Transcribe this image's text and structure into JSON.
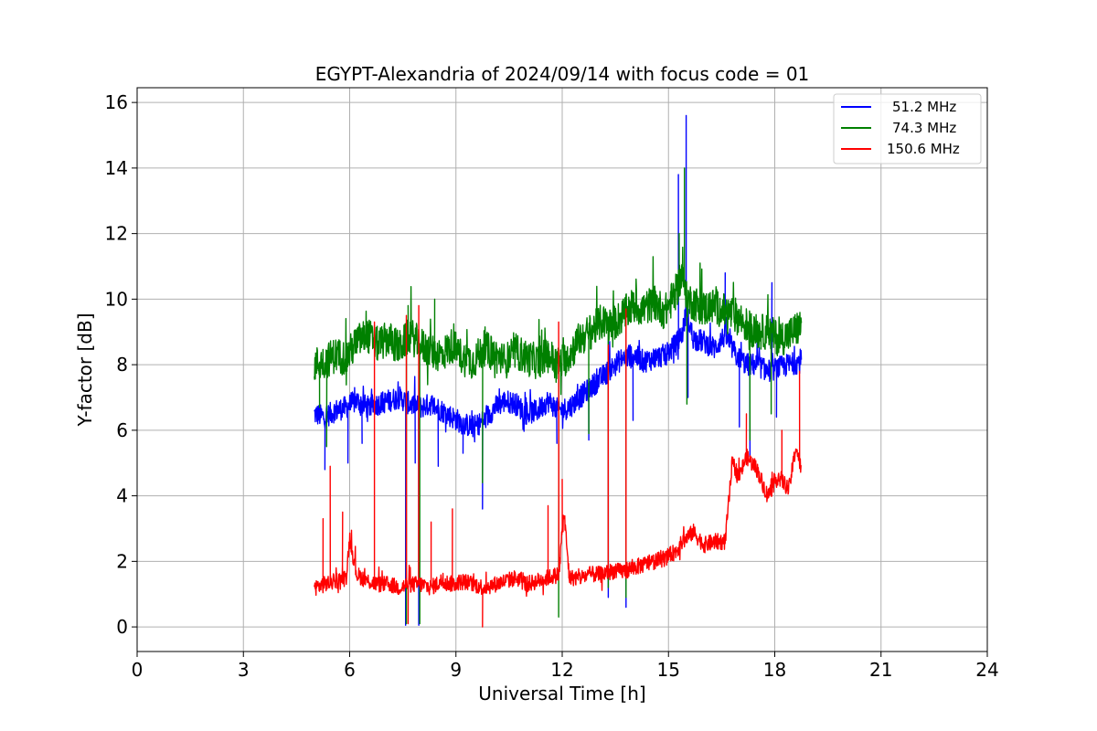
{
  "chart_data": {
    "type": "line",
    "title": "EGYPT-Alexandria of 2024/09/14 with focus code = 01",
    "xlabel": "Universal Time [h]",
    "ylabel": "Y-factor [dB]",
    "xlim": [
      0,
      24
    ],
    "ylim": [
      -0.75,
      16.45
    ],
    "xticks": [
      0,
      3,
      6,
      9,
      12,
      15,
      18,
      21,
      24
    ],
    "yticks": [
      0,
      2,
      4,
      6,
      8,
      10,
      12,
      14,
      16
    ],
    "grid": true,
    "legend_position": "top-right",
    "series": [
      {
        "name": "51.2 MHz",
        "color": "#0000ff",
        "x": [
          5.0,
          5.3,
          5.6,
          5.9,
          6.2,
          6.5,
          6.8,
          7.1,
          7.4,
          7.7,
          8.0,
          8.3,
          8.6,
          8.9,
          9.2,
          9.5,
          9.8,
          10.1,
          10.4,
          10.7,
          11.0,
          11.3,
          11.6,
          11.9,
          12.2,
          12.5,
          12.8,
          13.1,
          13.4,
          13.7,
          14.0,
          14.3,
          14.6,
          14.9,
          15.2,
          15.4,
          15.5,
          15.7,
          16.0,
          16.3,
          16.6,
          16.9,
          17.2,
          17.5,
          17.8,
          18.1,
          18.4,
          18.75
        ],
        "y": [
          6.5,
          6.4,
          6.6,
          6.7,
          6.9,
          6.7,
          6.8,
          6.9,
          7.0,
          6.8,
          6.7,
          6.8,
          6.6,
          6.4,
          6.2,
          6.1,
          6.3,
          6.7,
          6.9,
          6.8,
          6.5,
          6.6,
          6.9,
          6.6,
          6.7,
          7.0,
          7.3,
          7.6,
          7.9,
          8.2,
          8.3,
          8.1,
          8.2,
          8.3,
          8.6,
          9.0,
          9.6,
          8.8,
          8.7,
          8.5,
          8.9,
          8.3,
          8.0,
          8.0,
          7.8,
          7.9,
          8.0,
          8.1
        ],
        "spikes": [
          [
            5.3,
            4.8
          ],
          [
            5.95,
            5.0
          ],
          [
            6.35,
            5.6
          ],
          [
            7.58,
            0.05
          ],
          [
            7.85,
            5.0
          ],
          [
            7.95,
            0.05
          ],
          [
            8.5,
            4.9
          ],
          [
            9.2,
            5.3
          ],
          [
            9.75,
            3.6
          ],
          [
            11.85,
            5.6
          ],
          [
            12.75,
            5.7
          ],
          [
            13.3,
            0.9
          ],
          [
            13.8,
            0.6
          ],
          [
            14.0,
            6.3
          ],
          [
            15.28,
            13.8
          ],
          [
            15.5,
            15.6
          ],
          [
            15.55,
            7.0
          ],
          [
            16.6,
            10.8
          ],
          [
            17.0,
            6.1
          ],
          [
            17.3,
            5.2
          ],
          [
            17.92,
            10.5
          ],
          [
            18.05,
            6.4
          ]
        ]
      },
      {
        "name": "74.3 MHz",
        "color": "#008000",
        "x": [
          5.0,
          5.3,
          5.6,
          5.9,
          6.2,
          6.5,
          6.8,
          7.1,
          7.4,
          7.7,
          8.0,
          8.3,
          8.6,
          8.9,
          9.2,
          9.5,
          9.8,
          10.1,
          10.4,
          10.7,
          11.0,
          11.3,
          11.6,
          11.9,
          12.2,
          12.5,
          12.8,
          13.1,
          13.4,
          13.7,
          14.0,
          14.3,
          14.6,
          14.9,
          15.2,
          15.4,
          15.5,
          15.7,
          16.0,
          16.3,
          16.6,
          16.9,
          17.2,
          17.5,
          17.8,
          18.1,
          18.4,
          18.75
        ],
        "y": [
          8.0,
          8.1,
          8.3,
          8.2,
          8.7,
          8.9,
          8.6,
          8.8,
          8.5,
          8.9,
          8.6,
          8.4,
          8.3,
          8.6,
          8.2,
          8.1,
          8.5,
          8.3,
          8.1,
          8.4,
          8.2,
          8.1,
          8.3,
          8.0,
          8.3,
          8.8,
          9.0,
          9.3,
          9.2,
          9.5,
          9.8,
          9.7,
          9.9,
          9.6,
          10.2,
          10.8,
          10.0,
          9.9,
          9.7,
          9.8,
          9.6,
          9.5,
          9.2,
          9.0,
          9.0,
          8.8,
          8.9,
          9.2
        ],
        "spikes": [
          [
            5.15,
            6.7
          ],
          [
            5.35,
            5.5
          ],
          [
            7.6,
            0.1
          ],
          [
            7.65,
            9.8
          ],
          [
            7.98,
            0.1
          ],
          [
            8.4,
            10.0
          ],
          [
            9.75,
            4.4
          ],
          [
            11.9,
            0.3
          ],
          [
            12.75,
            5.9
          ],
          [
            13.3,
            1.2
          ],
          [
            13.8,
            0.9
          ],
          [
            15.3,
            12.0
          ],
          [
            15.45,
            14.0
          ],
          [
            15.52,
            6.8
          ],
          [
            17.3,
            5.7
          ],
          [
            17.9,
            6.5
          ]
        ]
      },
      {
        "name": "150.6 MHz",
        "color": "#ff0000",
        "x": [
          5.0,
          5.3,
          5.6,
          5.9,
          6.0,
          6.2,
          6.5,
          6.8,
          7.1,
          7.4,
          7.7,
          8.0,
          8.3,
          8.6,
          8.9,
          9.2,
          9.5,
          9.8,
          10.1,
          10.4,
          10.7,
          11.0,
          11.3,
          11.6,
          11.9,
          12.05,
          12.2,
          12.5,
          12.8,
          13.1,
          13.4,
          13.7,
          14.0,
          14.3,
          14.6,
          14.9,
          15.2,
          15.4,
          15.7,
          16.0,
          16.3,
          16.6,
          16.8,
          17.0,
          17.2,
          17.5,
          17.8,
          18.1,
          18.4,
          18.6,
          18.75
        ],
        "y": [
          1.2,
          1.3,
          1.4,
          1.5,
          2.7,
          1.6,
          1.4,
          1.3,
          1.3,
          1.2,
          1.3,
          1.3,
          1.2,
          1.4,
          1.3,
          1.4,
          1.3,
          1.2,
          1.3,
          1.4,
          1.5,
          1.3,
          1.4,
          1.5,
          1.6,
          3.5,
          1.5,
          1.5,
          1.6,
          1.6,
          1.7,
          1.7,
          1.8,
          1.9,
          2.0,
          2.1,
          2.3,
          2.6,
          2.9,
          2.5,
          2.6,
          2.6,
          5.0,
          4.6,
          5.2,
          4.8,
          4.0,
          4.6,
          4.2,
          5.5,
          4.8
        ],
        "spikes": [
          [
            5.25,
            3.3
          ],
          [
            5.45,
            4.9
          ],
          [
            5.8,
            3.5
          ],
          [
            6.7,
            9.3
          ],
          [
            7.6,
            9.5
          ],
          [
            7.65,
            0.1
          ],
          [
            7.95,
            9.8
          ],
          [
            8.3,
            3.2
          ],
          [
            8.9,
            3.6
          ],
          [
            9.75,
            0.0
          ],
          [
            11.6,
            3.7
          ],
          [
            11.9,
            9.3
          ],
          [
            12.0,
            4.5
          ],
          [
            13.3,
            8.6
          ],
          [
            13.8,
            9.7
          ],
          [
            17.2,
            6.5
          ],
          [
            18.2,
            6.0
          ],
          [
            18.7,
            7.8
          ]
        ]
      }
    ]
  }
}
